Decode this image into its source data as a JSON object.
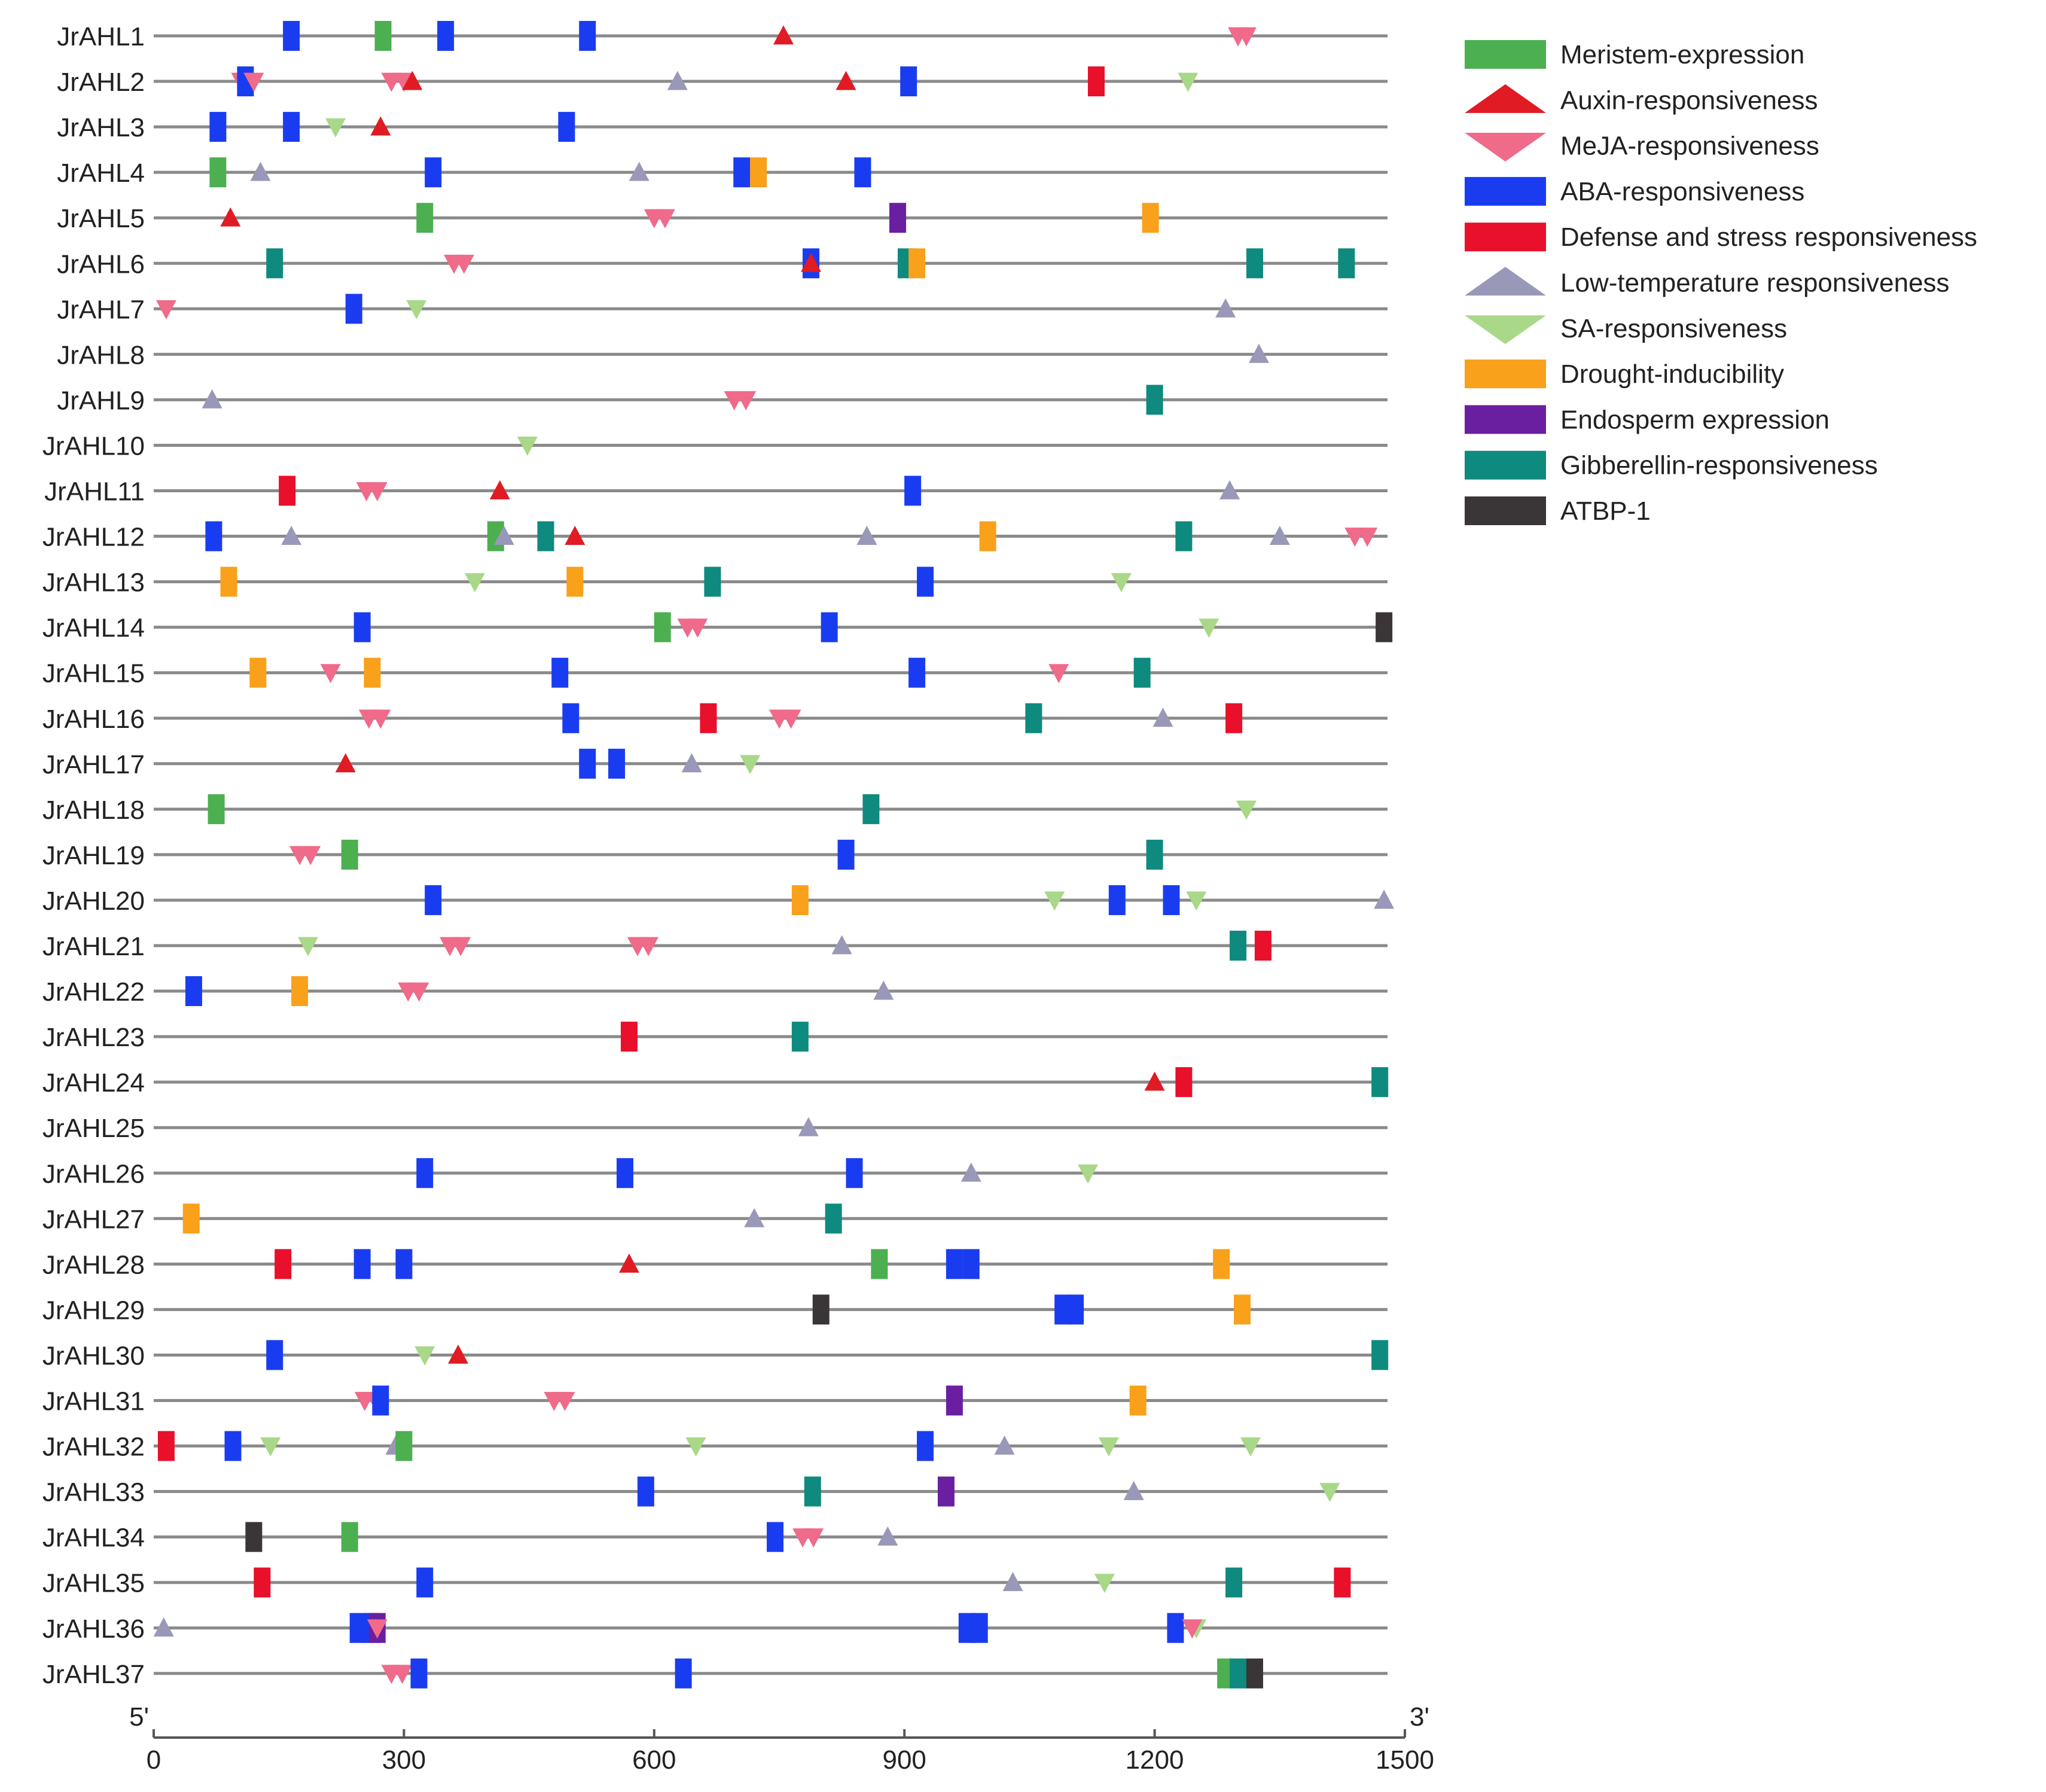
{
  "chart_data": {
    "type": "promoter cis-element map",
    "x_axis": {
      "min": 0,
      "max": 1500,
      "ticks": [
        0,
        300,
        600,
        900,
        1200,
        1500
      ],
      "start_label": "5'",
      "end_label": "3'"
    },
    "element_types": [
      {
        "name": "Meristem-expression",
        "color": "#4CAF50",
        "shape": "rect"
      },
      {
        "name": "Auxin-responsiveness",
        "color": "#E01B24",
        "shape": "triangle-up"
      },
      {
        "name": "MeJA-responsiveness",
        "color": "#F06A8A",
        "shape": "triangle-down"
      },
      {
        "name": "ABA-responsiveness",
        "color": "#1A3CF0",
        "shape": "rect"
      },
      {
        "name": "Defense and stress responsiveness",
        "color": "#E8102A",
        "shape": "rect"
      },
      {
        "name": "Low-temperature responsiveness",
        "color": "#9A98B8",
        "shape": "triangle-up"
      },
      {
        "name": "SA-responsiveness",
        "color": "#A8D888",
        "shape": "triangle-down"
      },
      {
        "name": "Drought-inducibility",
        "color": "#F9A11B",
        "shape": "rect"
      },
      {
        "name": "Endosperm expression",
        "color": "#6A1FA0",
        "shape": "rect"
      },
      {
        "name": "Gibberellin-responsiveness",
        "color": "#0E8A7E",
        "shape": "rect"
      },
      {
        "name": "ATBP-1",
        "color": "#3A3536",
        "shape": "rect"
      }
    ],
    "genes": [
      {
        "name": "JrAHL1",
        "elements": [
          [
            3,
            165
          ],
          [
            0,
            275
          ],
          [
            3,
            350
          ],
          [
            3,
            520
          ],
          [
            1,
            755
          ],
          [
            2,
            1300
          ],
          [
            2,
            1310
          ]
        ]
      },
      {
        "name": "JrAHL2",
        "elements": [
          [
            2,
            105
          ],
          [
            3,
            110
          ],
          [
            2,
            120
          ],
          [
            2,
            285
          ],
          [
            2,
            300
          ],
          [
            1,
            310
          ],
          [
            5,
            628
          ],
          [
            1,
            830
          ],
          [
            3,
            905
          ],
          [
            4,
            1130
          ],
          [
            6,
            1240
          ]
        ]
      },
      {
        "name": "JrAHL3",
        "elements": [
          [
            3,
            77
          ],
          [
            3,
            165
          ],
          [
            6,
            218
          ],
          [
            1,
            272
          ],
          [
            3,
            495
          ]
        ]
      },
      {
        "name": "JrAHL4",
        "elements": [
          [
            0,
            77
          ],
          [
            5,
            128
          ],
          [
            3,
            335
          ],
          [
            5,
            582
          ],
          [
            3,
            705
          ],
          [
            7,
            725
          ],
          [
            3,
            850
          ]
        ]
      },
      {
        "name": "JrAHL5",
        "elements": [
          [
            1,
            92
          ],
          [
            0,
            325
          ],
          [
            2,
            600
          ],
          [
            2,
            613
          ],
          [
            8,
            892
          ],
          [
            7,
            1195
          ]
        ]
      },
      {
        "name": "JrAHL6",
        "elements": [
          [
            9,
            145
          ],
          [
            2,
            360
          ],
          [
            2,
            372
          ],
          [
            3,
            788
          ],
          [
            1,
            788
          ],
          [
            9,
            902
          ],
          [
            7,
            915
          ],
          [
            9,
            1320
          ],
          [
            9,
            1430
          ]
        ]
      },
      {
        "name": "JrAHL7",
        "elements": [
          [
            2,
            15
          ],
          [
            3,
            240
          ],
          [
            6,
            315
          ],
          [
            5,
            1285
          ]
        ]
      },
      {
        "name": "JrAHL8",
        "elements": [
          [
            5,
            1325
          ]
        ]
      },
      {
        "name": "JrAHL9",
        "elements": [
          [
            5,
            70
          ],
          [
            2,
            696
          ],
          [
            2,
            710
          ],
          [
            9,
            1200
          ]
        ]
      },
      {
        "name": "JrAHL10",
        "elements": [
          [
            6,
            448
          ]
        ]
      },
      {
        "name": "JrAHL11",
        "elements": [
          [
            4,
            160
          ],
          [
            2,
            255
          ],
          [
            2,
            268
          ],
          [
            1,
            415
          ],
          [
            3,
            910
          ],
          [
            5,
            1290
          ]
        ]
      },
      {
        "name": "JrAHL12",
        "elements": [
          [
            3,
            72
          ],
          [
            5,
            165
          ],
          [
            0,
            410
          ],
          [
            5,
            420
          ],
          [
            9,
            470
          ],
          [
            1,
            505
          ],
          [
            5,
            855
          ],
          [
            7,
            1000
          ],
          [
            9,
            1235
          ],
          [
            5,
            1350
          ],
          [
            2,
            1440
          ],
          [
            2,
            1455
          ]
        ]
      },
      {
        "name": "JrAHL13",
        "elements": [
          [
            7,
            90
          ],
          [
            6,
            385
          ],
          [
            7,
            505
          ],
          [
            9,
            670
          ],
          [
            3,
            925
          ],
          [
            6,
            1160
          ]
        ]
      },
      {
        "name": "JrAHL14",
        "elements": [
          [
            3,
            250
          ],
          [
            0,
            610
          ],
          [
            2,
            640
          ],
          [
            2,
            652
          ],
          [
            3,
            810
          ],
          [
            6,
            1265
          ],
          [
            10,
            1475
          ]
        ]
      },
      {
        "name": "JrAHL15",
        "elements": [
          [
            7,
            125
          ],
          [
            2,
            212
          ],
          [
            7,
            262
          ],
          [
            3,
            487
          ],
          [
            3,
            915
          ],
          [
            2,
            1085
          ],
          [
            9,
            1185
          ]
        ]
      },
      {
        "name": "JrAHL16",
        "elements": [
          [
            2,
            258
          ],
          [
            2,
            272
          ],
          [
            3,
            500
          ],
          [
            4,
            665
          ],
          [
            2,
            750
          ],
          [
            2,
            764
          ],
          [
            9,
            1055
          ],
          [
            5,
            1210
          ],
          [
            4,
            1295
          ]
        ]
      },
      {
        "name": "JrAHL17",
        "elements": [
          [
            1,
            230
          ],
          [
            3,
            520
          ],
          [
            3,
            555
          ],
          [
            5,
            645
          ],
          [
            6,
            715
          ]
        ]
      },
      {
        "name": "JrAHL18",
        "elements": [
          [
            0,
            75
          ],
          [
            9,
            860
          ],
          [
            6,
            1310
          ]
        ]
      },
      {
        "name": "JrAHL19",
        "elements": [
          [
            2,
            175
          ],
          [
            2,
            188
          ],
          [
            0,
            235
          ],
          [
            3,
            830
          ],
          [
            9,
            1200
          ]
        ]
      },
      {
        "name": "JrAHL20",
        "elements": [
          [
            3,
            335
          ],
          [
            7,
            775
          ],
          [
            6,
            1080
          ],
          [
            3,
            1155
          ],
          [
            3,
            1220
          ],
          [
            6,
            1250
          ],
          [
            5,
            1475
          ]
        ]
      },
      {
        "name": "JrAHL21",
        "elements": [
          [
            6,
            185
          ],
          [
            2,
            355
          ],
          [
            2,
            368
          ],
          [
            2,
            580
          ],
          [
            2,
            593
          ],
          [
            5,
            825
          ],
          [
            9,
            1300
          ],
          [
            4,
            1330
          ]
        ]
      },
      {
        "name": "JrAHL22",
        "elements": [
          [
            3,
            48
          ],
          [
            7,
            175
          ],
          [
            2,
            305
          ],
          [
            2,
            318
          ],
          [
            5,
            875
          ]
        ]
      },
      {
        "name": "JrAHL23",
        "elements": [
          [
            4,
            570
          ],
          [
            9,
            775
          ]
        ]
      },
      {
        "name": "JrAHL24",
        "elements": [
          [
            1,
            1200
          ],
          [
            4,
            1235
          ],
          [
            9,
            1470
          ]
        ]
      },
      {
        "name": "JrAHL25",
        "elements": [
          [
            5,
            785
          ]
        ]
      },
      {
        "name": "JrAHL26",
        "elements": [
          [
            3,
            325
          ],
          [
            3,
            565
          ],
          [
            3,
            840
          ],
          [
            5,
            980
          ],
          [
            6,
            1120
          ]
        ]
      },
      {
        "name": "JrAHL27",
        "elements": [
          [
            7,
            45
          ],
          [
            5,
            720
          ],
          [
            9,
            815
          ]
        ]
      },
      {
        "name": "JrAHL28",
        "elements": [
          [
            4,
            155
          ],
          [
            3,
            250
          ],
          [
            3,
            300
          ],
          [
            1,
            570
          ],
          [
            0,
            870
          ],
          [
            3,
            960
          ],
          [
            3,
            980
          ],
          [
            7,
            1280
          ]
        ]
      },
      {
        "name": "JrAHL29",
        "elements": [
          [
            10,
            800
          ],
          [
            3,
            1090
          ],
          [
            3,
            1105
          ],
          [
            7,
            1305
          ]
        ]
      },
      {
        "name": "JrAHL30",
        "elements": [
          [
            3,
            145
          ],
          [
            6,
            325
          ],
          [
            1,
            365
          ],
          [
            9,
            1470
          ]
        ]
      },
      {
        "name": "JrAHL31",
        "elements": [
          [
            2,
            253
          ],
          [
            2,
            266
          ],
          [
            3,
            272
          ],
          [
            2,
            480
          ],
          [
            2,
            493
          ],
          [
            8,
            960
          ],
          [
            7,
            1180
          ]
        ]
      },
      {
        "name": "JrAHL32",
        "elements": [
          [
            4,
            15
          ],
          [
            3,
            95
          ],
          [
            6,
            140
          ],
          [
            5,
            290
          ],
          [
            0,
            300
          ],
          [
            6,
            650
          ],
          [
            3,
            925
          ],
          [
            5,
            1020
          ],
          [
            6,
            1145
          ],
          [
            6,
            1315
          ]
        ]
      },
      {
        "name": "JrAHL33",
        "elements": [
          [
            3,
            590
          ],
          [
            9,
            790
          ],
          [
            8,
            950
          ],
          [
            5,
            1175
          ],
          [
            6,
            1410
          ]
        ]
      },
      {
        "name": "JrAHL34",
        "elements": [
          [
            10,
            120
          ],
          [
            0,
            235
          ],
          [
            3,
            745
          ],
          [
            2,
            778
          ],
          [
            2,
            791
          ],
          [
            5,
            880
          ]
        ]
      },
      {
        "name": "JrAHL35",
        "elements": [
          [
            4,
            130
          ],
          [
            3,
            325
          ],
          [
            5,
            1030
          ],
          [
            6,
            1140
          ],
          [
            9,
            1295
          ],
          [
            4,
            1425
          ]
        ]
      },
      {
        "name": "JrAHL36",
        "elements": [
          [
            5,
            12
          ],
          [
            3,
            245
          ],
          [
            3,
            262
          ],
          [
            8,
            268
          ],
          [
            2,
            268
          ],
          [
            3,
            975
          ],
          [
            3,
            990
          ],
          [
            3,
            1225
          ],
          [
            6,
            1250
          ],
          [
            2,
            1245
          ]
        ]
      },
      {
        "name": "JrAHL37",
        "elements": [
          [
            2,
            285
          ],
          [
            2,
            298
          ],
          [
            3,
            318
          ],
          [
            3,
            635
          ],
          [
            0,
            1285
          ],
          [
            9,
            1300
          ],
          [
            10,
            1320
          ]
        ]
      }
    ]
  }
}
